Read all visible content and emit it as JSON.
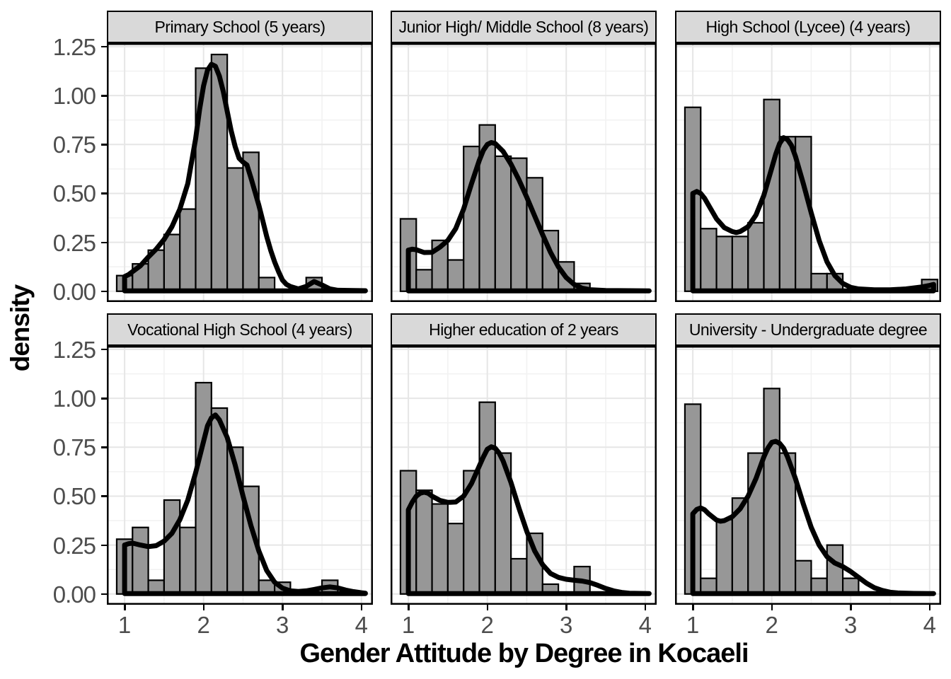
{
  "chart_data": {
    "type": "bar",
    "subtype": "faceted-histogram-with-density",
    "title": "",
    "xlabel": "Gender Attitude by Degree in Kocaeli",
    "ylabel": "density",
    "x_tick_values": [
      1,
      2,
      3,
      4
    ],
    "x_tick_labels": [
      "1",
      "2",
      "3",
      "4"
    ],
    "y_tick_values": [
      0.0,
      0.25,
      0.5,
      0.75,
      1.0,
      1.25
    ],
    "y_tick_labels": [
      "0.00",
      "0.25",
      "0.50",
      "0.75",
      "1.00",
      "1.25"
    ],
    "y_minor_values": [
      0.125,
      0.375,
      0.625,
      0.875,
      1.125
    ],
    "x_minor_values": [
      1.5,
      2.5,
      3.5
    ],
    "xlim": [
      0.775,
      4.145
    ],
    "ylim": [
      -0.055,
      1.268
    ],
    "binwidth": 0.2,
    "grid": true,
    "legend_position": "none",
    "facets": [
      {
        "label": "Primary School (5 years)",
        "bars": [
          [
            1.0,
            0.08
          ],
          [
            1.2,
            0.14
          ],
          [
            1.4,
            0.21
          ],
          [
            1.6,
            0.29
          ],
          [
            1.8,
            0.42
          ],
          [
            2.0,
            1.14
          ],
          [
            2.2,
            1.21
          ],
          [
            2.4,
            0.63
          ],
          [
            2.6,
            0.71
          ],
          [
            2.8,
            0.07
          ],
          [
            3.4,
            0.07
          ]
        ],
        "density": [
          [
            1.0,
            0.075
          ],
          [
            1.05,
            0.085
          ],
          [
            1.1,
            0.1
          ],
          [
            1.2,
            0.13
          ],
          [
            1.3,
            0.175
          ],
          [
            1.4,
            0.215
          ],
          [
            1.5,
            0.265
          ],
          [
            1.6,
            0.33
          ],
          [
            1.7,
            0.42
          ],
          [
            1.8,
            0.55
          ],
          [
            1.9,
            0.78
          ],
          [
            1.95,
            0.93
          ],
          [
            2.0,
            1.05
          ],
          [
            2.05,
            1.13
          ],
          [
            2.1,
            1.16
          ],
          [
            2.15,
            1.15
          ],
          [
            2.2,
            1.1
          ],
          [
            2.25,
            1.02
          ],
          [
            2.3,
            0.92
          ],
          [
            2.35,
            0.82
          ],
          [
            2.4,
            0.74
          ],
          [
            2.45,
            0.68
          ],
          [
            2.5,
            0.66
          ],
          [
            2.55,
            0.645
          ],
          [
            2.6,
            0.58
          ],
          [
            2.65,
            0.51
          ],
          [
            2.7,
            0.44
          ],
          [
            2.75,
            0.36
          ],
          [
            2.8,
            0.28
          ],
          [
            2.85,
            0.21
          ],
          [
            2.9,
            0.15
          ],
          [
            2.95,
            0.1
          ],
          [
            3.0,
            0.057
          ],
          [
            3.05,
            0.035
          ],
          [
            3.1,
            0.024
          ],
          [
            3.2,
            0.012
          ],
          [
            3.3,
            0.025
          ],
          [
            3.4,
            0.05
          ],
          [
            3.5,
            0.032
          ],
          [
            3.6,
            0.012
          ],
          [
            3.7,
            0.005
          ],
          [
            3.9,
            0.004
          ],
          [
            4.05,
            0.003
          ]
        ]
      },
      {
        "label": "Junior High/ Middle School (8 years)",
        "bars": [
          [
            1.0,
            0.37
          ],
          [
            1.2,
            0.11
          ],
          [
            1.4,
            0.26
          ],
          [
            1.6,
            0.16
          ],
          [
            1.8,
            0.74
          ],
          [
            2.0,
            0.85
          ],
          [
            2.2,
            0.69
          ],
          [
            2.4,
            0.68
          ],
          [
            2.6,
            0.58
          ],
          [
            2.8,
            0.31
          ],
          [
            3.0,
            0.15
          ],
          [
            3.2,
            0.04
          ]
        ],
        "density": [
          [
            1.0,
            0.21
          ],
          [
            1.05,
            0.215
          ],
          [
            1.1,
            0.212
          ],
          [
            1.2,
            0.198
          ],
          [
            1.3,
            0.199
          ],
          [
            1.4,
            0.225
          ],
          [
            1.5,
            0.26
          ],
          [
            1.6,
            0.32
          ],
          [
            1.7,
            0.42
          ],
          [
            1.8,
            0.55
          ],
          [
            1.9,
            0.67
          ],
          [
            1.95,
            0.72
          ],
          [
            2.0,
            0.75
          ],
          [
            2.05,
            0.76
          ],
          [
            2.1,
            0.755
          ],
          [
            2.2,
            0.715
          ],
          [
            2.3,
            0.65
          ],
          [
            2.4,
            0.57
          ],
          [
            2.5,
            0.48
          ],
          [
            2.6,
            0.385
          ],
          [
            2.7,
            0.29
          ],
          [
            2.8,
            0.2
          ],
          [
            2.9,
            0.125
          ],
          [
            3.0,
            0.07
          ],
          [
            3.1,
            0.035
          ],
          [
            3.2,
            0.016
          ],
          [
            3.3,
            0.008
          ],
          [
            3.5,
            0.004
          ],
          [
            3.8,
            0.003
          ],
          [
            4.05,
            0.002
          ]
        ]
      },
      {
        "label": "High School (Lycee) (4 years)",
        "bars": [
          [
            1.0,
            0.94
          ],
          [
            1.2,
            0.32
          ],
          [
            1.4,
            0.28
          ],
          [
            1.6,
            0.28
          ],
          [
            1.8,
            0.35
          ],
          [
            2.0,
            0.98
          ],
          [
            2.2,
            0.79
          ],
          [
            2.4,
            0.79
          ],
          [
            2.6,
            0.09
          ],
          [
            2.8,
            0.09
          ],
          [
            4.0,
            0.06
          ]
        ],
        "density": [
          [
            1.0,
            0.5
          ],
          [
            1.05,
            0.51
          ],
          [
            1.1,
            0.5
          ],
          [
            1.15,
            0.475
          ],
          [
            1.2,
            0.44
          ],
          [
            1.3,
            0.37
          ],
          [
            1.4,
            0.325
          ],
          [
            1.5,
            0.305
          ],
          [
            1.55,
            0.3
          ],
          [
            1.6,
            0.305
          ],
          [
            1.7,
            0.33
          ],
          [
            1.8,
            0.39
          ],
          [
            1.9,
            0.49
          ],
          [
            2.0,
            0.63
          ],
          [
            2.05,
            0.7
          ],
          [
            2.1,
            0.755
          ],
          [
            2.15,
            0.785
          ],
          [
            2.2,
            0.775
          ],
          [
            2.25,
            0.745
          ],
          [
            2.3,
            0.69
          ],
          [
            2.4,
            0.55
          ],
          [
            2.5,
            0.4
          ],
          [
            2.6,
            0.26
          ],
          [
            2.7,
            0.15
          ],
          [
            2.8,
            0.08
          ],
          [
            2.9,
            0.04
          ],
          [
            3.0,
            0.02
          ],
          [
            3.1,
            0.012
          ],
          [
            3.3,
            0.007
          ],
          [
            3.5,
            0.007
          ],
          [
            3.7,
            0.012
          ],
          [
            3.9,
            0.022
          ],
          [
            4.0,
            0.03
          ],
          [
            4.05,
            0.035
          ]
        ]
      },
      {
        "label": "Vocational High School (4 years)",
        "bars": [
          [
            1.0,
            0.28
          ],
          [
            1.2,
            0.34
          ],
          [
            1.4,
            0.07
          ],
          [
            1.6,
            0.48
          ],
          [
            1.8,
            0.34
          ],
          [
            2.0,
            1.08
          ],
          [
            2.2,
            0.95
          ],
          [
            2.4,
            0.75
          ],
          [
            2.6,
            0.55
          ],
          [
            2.8,
            0.07
          ],
          [
            3.0,
            0.06
          ],
          [
            3.6,
            0.07
          ]
        ],
        "density": [
          [
            1.0,
            0.25
          ],
          [
            1.05,
            0.257
          ],
          [
            1.1,
            0.26
          ],
          [
            1.2,
            0.25
          ],
          [
            1.3,
            0.242
          ],
          [
            1.4,
            0.247
          ],
          [
            1.5,
            0.27
          ],
          [
            1.6,
            0.31
          ],
          [
            1.7,
            0.38
          ],
          [
            1.8,
            0.48
          ],
          [
            1.9,
            0.62
          ],
          [
            2.0,
            0.78
          ],
          [
            2.05,
            0.86
          ],
          [
            2.1,
            0.9
          ],
          [
            2.15,
            0.915
          ],
          [
            2.2,
            0.89
          ],
          [
            2.3,
            0.8
          ],
          [
            2.4,
            0.66
          ],
          [
            2.5,
            0.5
          ],
          [
            2.6,
            0.35
          ],
          [
            2.7,
            0.22
          ],
          [
            2.8,
            0.12
          ],
          [
            2.9,
            0.06
          ],
          [
            3.0,
            0.03
          ],
          [
            3.1,
            0.016
          ],
          [
            3.2,
            0.013
          ],
          [
            3.3,
            0.016
          ],
          [
            3.4,
            0.023
          ],
          [
            3.5,
            0.031
          ],
          [
            3.6,
            0.036
          ],
          [
            3.7,
            0.031
          ],
          [
            3.8,
            0.02
          ],
          [
            3.9,
            0.012
          ],
          [
            4.0,
            0.006
          ],
          [
            4.05,
            0.004
          ]
        ]
      },
      {
        "label": "Higher education of 2 years",
        "bars": [
          [
            1.0,
            0.63
          ],
          [
            1.2,
            0.53
          ],
          [
            1.4,
            0.46
          ],
          [
            1.6,
            0.36
          ],
          [
            1.8,
            0.63
          ],
          [
            2.0,
            0.98
          ],
          [
            2.2,
            0.72
          ],
          [
            2.4,
            0.18
          ],
          [
            2.6,
            0.31
          ],
          [
            2.8,
            0.05
          ],
          [
            3.2,
            0.14
          ]
        ],
        "density": [
          [
            1.0,
            0.43
          ],
          [
            1.05,
            0.47
          ],
          [
            1.1,
            0.5
          ],
          [
            1.15,
            0.515
          ],
          [
            1.2,
            0.52
          ],
          [
            1.25,
            0.515
          ],
          [
            1.3,
            0.5
          ],
          [
            1.4,
            0.478
          ],
          [
            1.5,
            0.468
          ],
          [
            1.6,
            0.47
          ],
          [
            1.7,
            0.5
          ],
          [
            1.8,
            0.565
          ],
          [
            1.9,
            0.655
          ],
          [
            1.95,
            0.7
          ],
          [
            2.0,
            0.74
          ],
          [
            2.05,
            0.752
          ],
          [
            2.1,
            0.745
          ],
          [
            2.15,
            0.72
          ],
          [
            2.2,
            0.68
          ],
          [
            2.3,
            0.57
          ],
          [
            2.4,
            0.44
          ],
          [
            2.5,
            0.32
          ],
          [
            2.6,
            0.22
          ],
          [
            2.7,
            0.15
          ],
          [
            2.8,
            0.105
          ],
          [
            2.9,
            0.085
          ],
          [
            3.0,
            0.075
          ],
          [
            3.1,
            0.07
          ],
          [
            3.2,
            0.066
          ],
          [
            3.3,
            0.058
          ],
          [
            3.4,
            0.044
          ],
          [
            3.5,
            0.028
          ],
          [
            3.6,
            0.016
          ],
          [
            3.7,
            0.008
          ],
          [
            3.8,
            0.004
          ],
          [
            4.05,
            0.002
          ]
        ]
      },
      {
        "label": "University - Undergraduate degree",
        "bars": [
          [
            1.0,
            0.97
          ],
          [
            1.2,
            0.08
          ],
          [
            1.4,
            0.38
          ],
          [
            1.6,
            0.49
          ],
          [
            1.8,
            0.72
          ],
          [
            2.0,
            1.05
          ],
          [
            2.2,
            0.72
          ],
          [
            2.4,
            0.17
          ],
          [
            2.6,
            0.08
          ],
          [
            2.8,
            0.25
          ],
          [
            3.0,
            0.08
          ]
        ],
        "density": [
          [
            1.0,
            0.41
          ],
          [
            1.05,
            0.432
          ],
          [
            1.1,
            0.44
          ],
          [
            1.15,
            0.43
          ],
          [
            1.2,
            0.41
          ],
          [
            1.3,
            0.378
          ],
          [
            1.35,
            0.372
          ],
          [
            1.4,
            0.375
          ],
          [
            1.5,
            0.395
          ],
          [
            1.6,
            0.435
          ],
          [
            1.7,
            0.5
          ],
          [
            1.8,
            0.59
          ],
          [
            1.9,
            0.7
          ],
          [
            1.95,
            0.745
          ],
          [
            2.0,
            0.775
          ],
          [
            2.05,
            0.78
          ],
          [
            2.1,
            0.77
          ],
          [
            2.15,
            0.745
          ],
          [
            2.2,
            0.7
          ],
          [
            2.3,
            0.59
          ],
          [
            2.4,
            0.46
          ],
          [
            2.5,
            0.34
          ],
          [
            2.6,
            0.25
          ],
          [
            2.7,
            0.19
          ],
          [
            2.8,
            0.158
          ],
          [
            2.9,
            0.14
          ],
          [
            3.0,
            0.115
          ],
          [
            3.1,
            0.085
          ],
          [
            3.2,
            0.055
          ],
          [
            3.3,
            0.032
          ],
          [
            3.4,
            0.018
          ],
          [
            3.5,
            0.009
          ],
          [
            3.6,
            0.005
          ],
          [
            3.8,
            0.003
          ],
          [
            4.05,
            0.002
          ]
        ]
      }
    ]
  },
  "colors": {
    "bar_fill": "#979797",
    "bar_stroke": "#000000",
    "density_curve": "#000000",
    "strip_bg": "#d9d9d9",
    "panel_bg": "#ffffff",
    "grid_major": "#e6e6e6",
    "grid_minor": "#f2f2f2",
    "panel_border": "#000000",
    "tick_label": "#4d4d4d",
    "title_color": "#000000"
  }
}
